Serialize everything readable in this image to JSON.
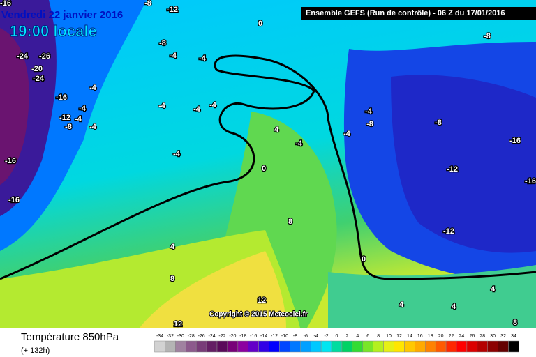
{
  "header": {
    "date": "Vendredi 22 janvier 2016",
    "time": "19:00 locale",
    "model": "Ensemble GEFS  (Run de contrôle)  - 06 Z du 17/01/2016"
  },
  "footer": {
    "title": "Température 850hPa",
    "lead": "(+ 132h)",
    "copyright": "Copyright © 2015 Meteociel.fr"
  },
  "legend": {
    "labels": [
      -34,
      -32,
      -30,
      -28,
      -26,
      -24,
      -22,
      -20,
      -18,
      -16,
      -14,
      -12,
      -10,
      -8,
      -6,
      -4,
      -2,
      0,
      2,
      4,
      6,
      8,
      10,
      12,
      14,
      16,
      18,
      20,
      22,
      24,
      26,
      28,
      30,
      32,
      34
    ],
    "colors": [
      "#d2d2d2",
      "#b4b4b4",
      "#a082a0",
      "#8c5a8c",
      "#783c78",
      "#641e64",
      "#5a0a5a",
      "#780078",
      "#8c00a0",
      "#6400c8",
      "#3200e6",
      "#0000ff",
      "#0046ff",
      "#0078ff",
      "#00a0ff",
      "#00c8ff",
      "#00e6f0",
      "#00dca0",
      "#00d264",
      "#32dc32",
      "#78e628",
      "#b4f01e",
      "#e6f014",
      "#ffe600",
      "#ffc800",
      "#ffaa00",
      "#ff8200",
      "#ff5a00",
      "#ff2800",
      "#ff0000",
      "#dc0000",
      "#b40000",
      "#8c0000",
      "#640000",
      "#000000"
    ]
  },
  "map_labels": [
    -16,
    -8,
    -12,
    -8,
    -4,
    -4,
    0,
    -8,
    -24,
    -26,
    -20,
    -24,
    -4,
    -16,
    -4,
    -4,
    -4,
    -12,
    -4,
    -4,
    -4,
    -8,
    4,
    -4,
    -8,
    -8,
    -4,
    -16,
    -4,
    -4,
    -16,
    0,
    -12,
    -16,
    -16,
    8,
    -12,
    4,
    0,
    8,
    4,
    12,
    4,
    4,
    12,
    8
  ]
}
